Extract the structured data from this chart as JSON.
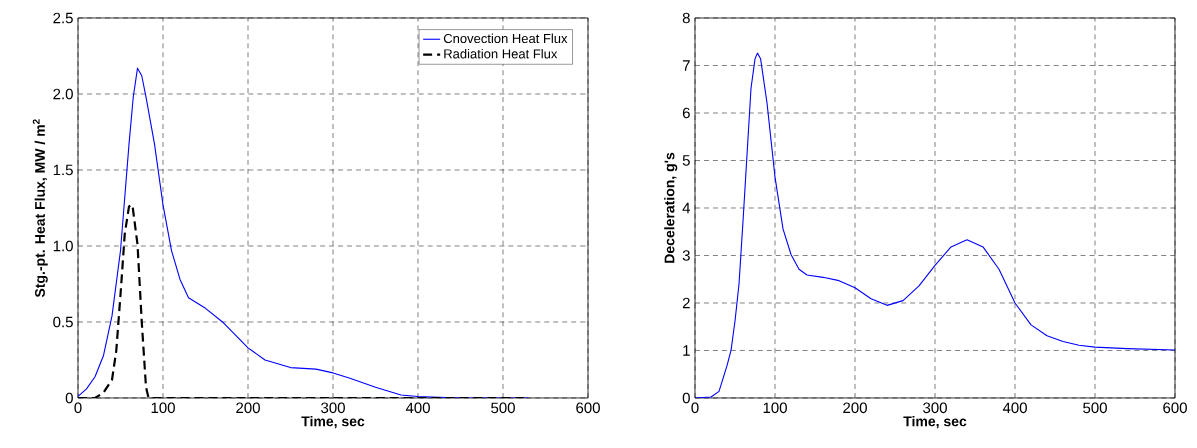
{
  "chart_data": [
    {
      "type": "line",
      "xlabel": "Time,  sec",
      "ylabel": "Stg.-pt. Heat Flux,  MW / m$^{2}$",
      "xlim": [
        0,
        600
      ],
      "ylim": [
        0,
        2.5
      ],
      "xticks": [
        0,
        100,
        200,
        300,
        400,
        500,
        600
      ],
      "yticks": [
        0,
        {
          "value": 0.5,
          "label": "0.5"
        },
        {
          "value": 1,
          "label": "1.0"
        },
        {
          "value": 1.5,
          "label": "1.5"
        },
        {
          "value": 2,
          "label": "2.0"
        },
        {
          "value": 2.5,
          "label": "2.5"
        }
      ],
      "grid": true,
      "legend": "top right",
      "series": [
        {
          "name": "Cnovection Heat Flux",
          "color": "#0000ff",
          "line_style": "solid",
          "x": [
            0,
            10,
            20,
            30,
            40,
            50,
            60,
            65,
            70,
            75,
            80,
            90,
            100,
            110,
            120,
            130,
            150,
            170,
            200,
            220,
            250,
            280,
            300,
            320,
            350,
            380,
            400,
            450,
            530
          ],
          "values": [
            0.01,
            0.06,
            0.14,
            0.28,
            0.54,
            0.97,
            1.67,
            1.98,
            2.17,
            2.12,
            1.98,
            1.67,
            1.27,
            0.97,
            0.78,
            0.66,
            0.59,
            0.5,
            0.33,
            0.25,
            0.2,
            0.19,
            0.165,
            0.13,
            0.07,
            0.02,
            0.01,
            0.0,
            0.0
          ]
        },
        {
          "name": "Radiation Heat Flux",
          "color": "#000000",
          "line_style": "dashed",
          "x": [
            0,
            20,
            30,
            40,
            45,
            50,
            55,
            60,
            64,
            70,
            75,
            80,
            83,
            100,
            530
          ],
          "values": [
            0,
            0,
            0.035,
            0.12,
            0.31,
            0.68,
            1.08,
            1.26,
            1.27,
            1.01,
            0.5,
            0.07,
            0,
            0,
            0
          ]
        }
      ]
    },
    {
      "type": "line",
      "xlabel": "Time,  sec",
      "ylabel": "Deceleration,  g's",
      "xlim": [
        0,
        600
      ],
      "ylim": [
        0,
        8
      ],
      "xticks": [
        0,
        100,
        200,
        300,
        400,
        500,
        600
      ],
      "yticks": [
        0,
        1,
        2,
        3,
        4,
        5,
        6,
        7,
        8
      ],
      "grid": true,
      "series": [
        {
          "color": "#0000ff",
          "line_style": "solid",
          "x": [
            0,
            20,
            30,
            40,
            45,
            50,
            55,
            60,
            65,
            70,
            75,
            78,
            82,
            90,
            100,
            110,
            120,
            130,
            140,
            160,
            180,
            200,
            220,
            240,
            260,
            280,
            300,
            320,
            340,
            360,
            380,
            400,
            420,
            440,
            460,
            480,
            500,
            540,
            600
          ],
          "values": [
            0.0,
            0.02,
            0.14,
            0.68,
            1.0,
            1.62,
            2.4,
            3.72,
            5.12,
            6.52,
            7.14,
            7.26,
            7.14,
            6.21,
            4.65,
            3.56,
            3.02,
            2.71,
            2.59,
            2.54,
            2.47,
            2.32,
            2.09,
            1.95,
            2.05,
            2.36,
            2.79,
            3.18,
            3.33,
            3.18,
            2.71,
            2.0,
            1.54,
            1.31,
            1.19,
            1.11,
            1.07,
            1.04,
            1.01
          ]
        }
      ]
    }
  ]
}
